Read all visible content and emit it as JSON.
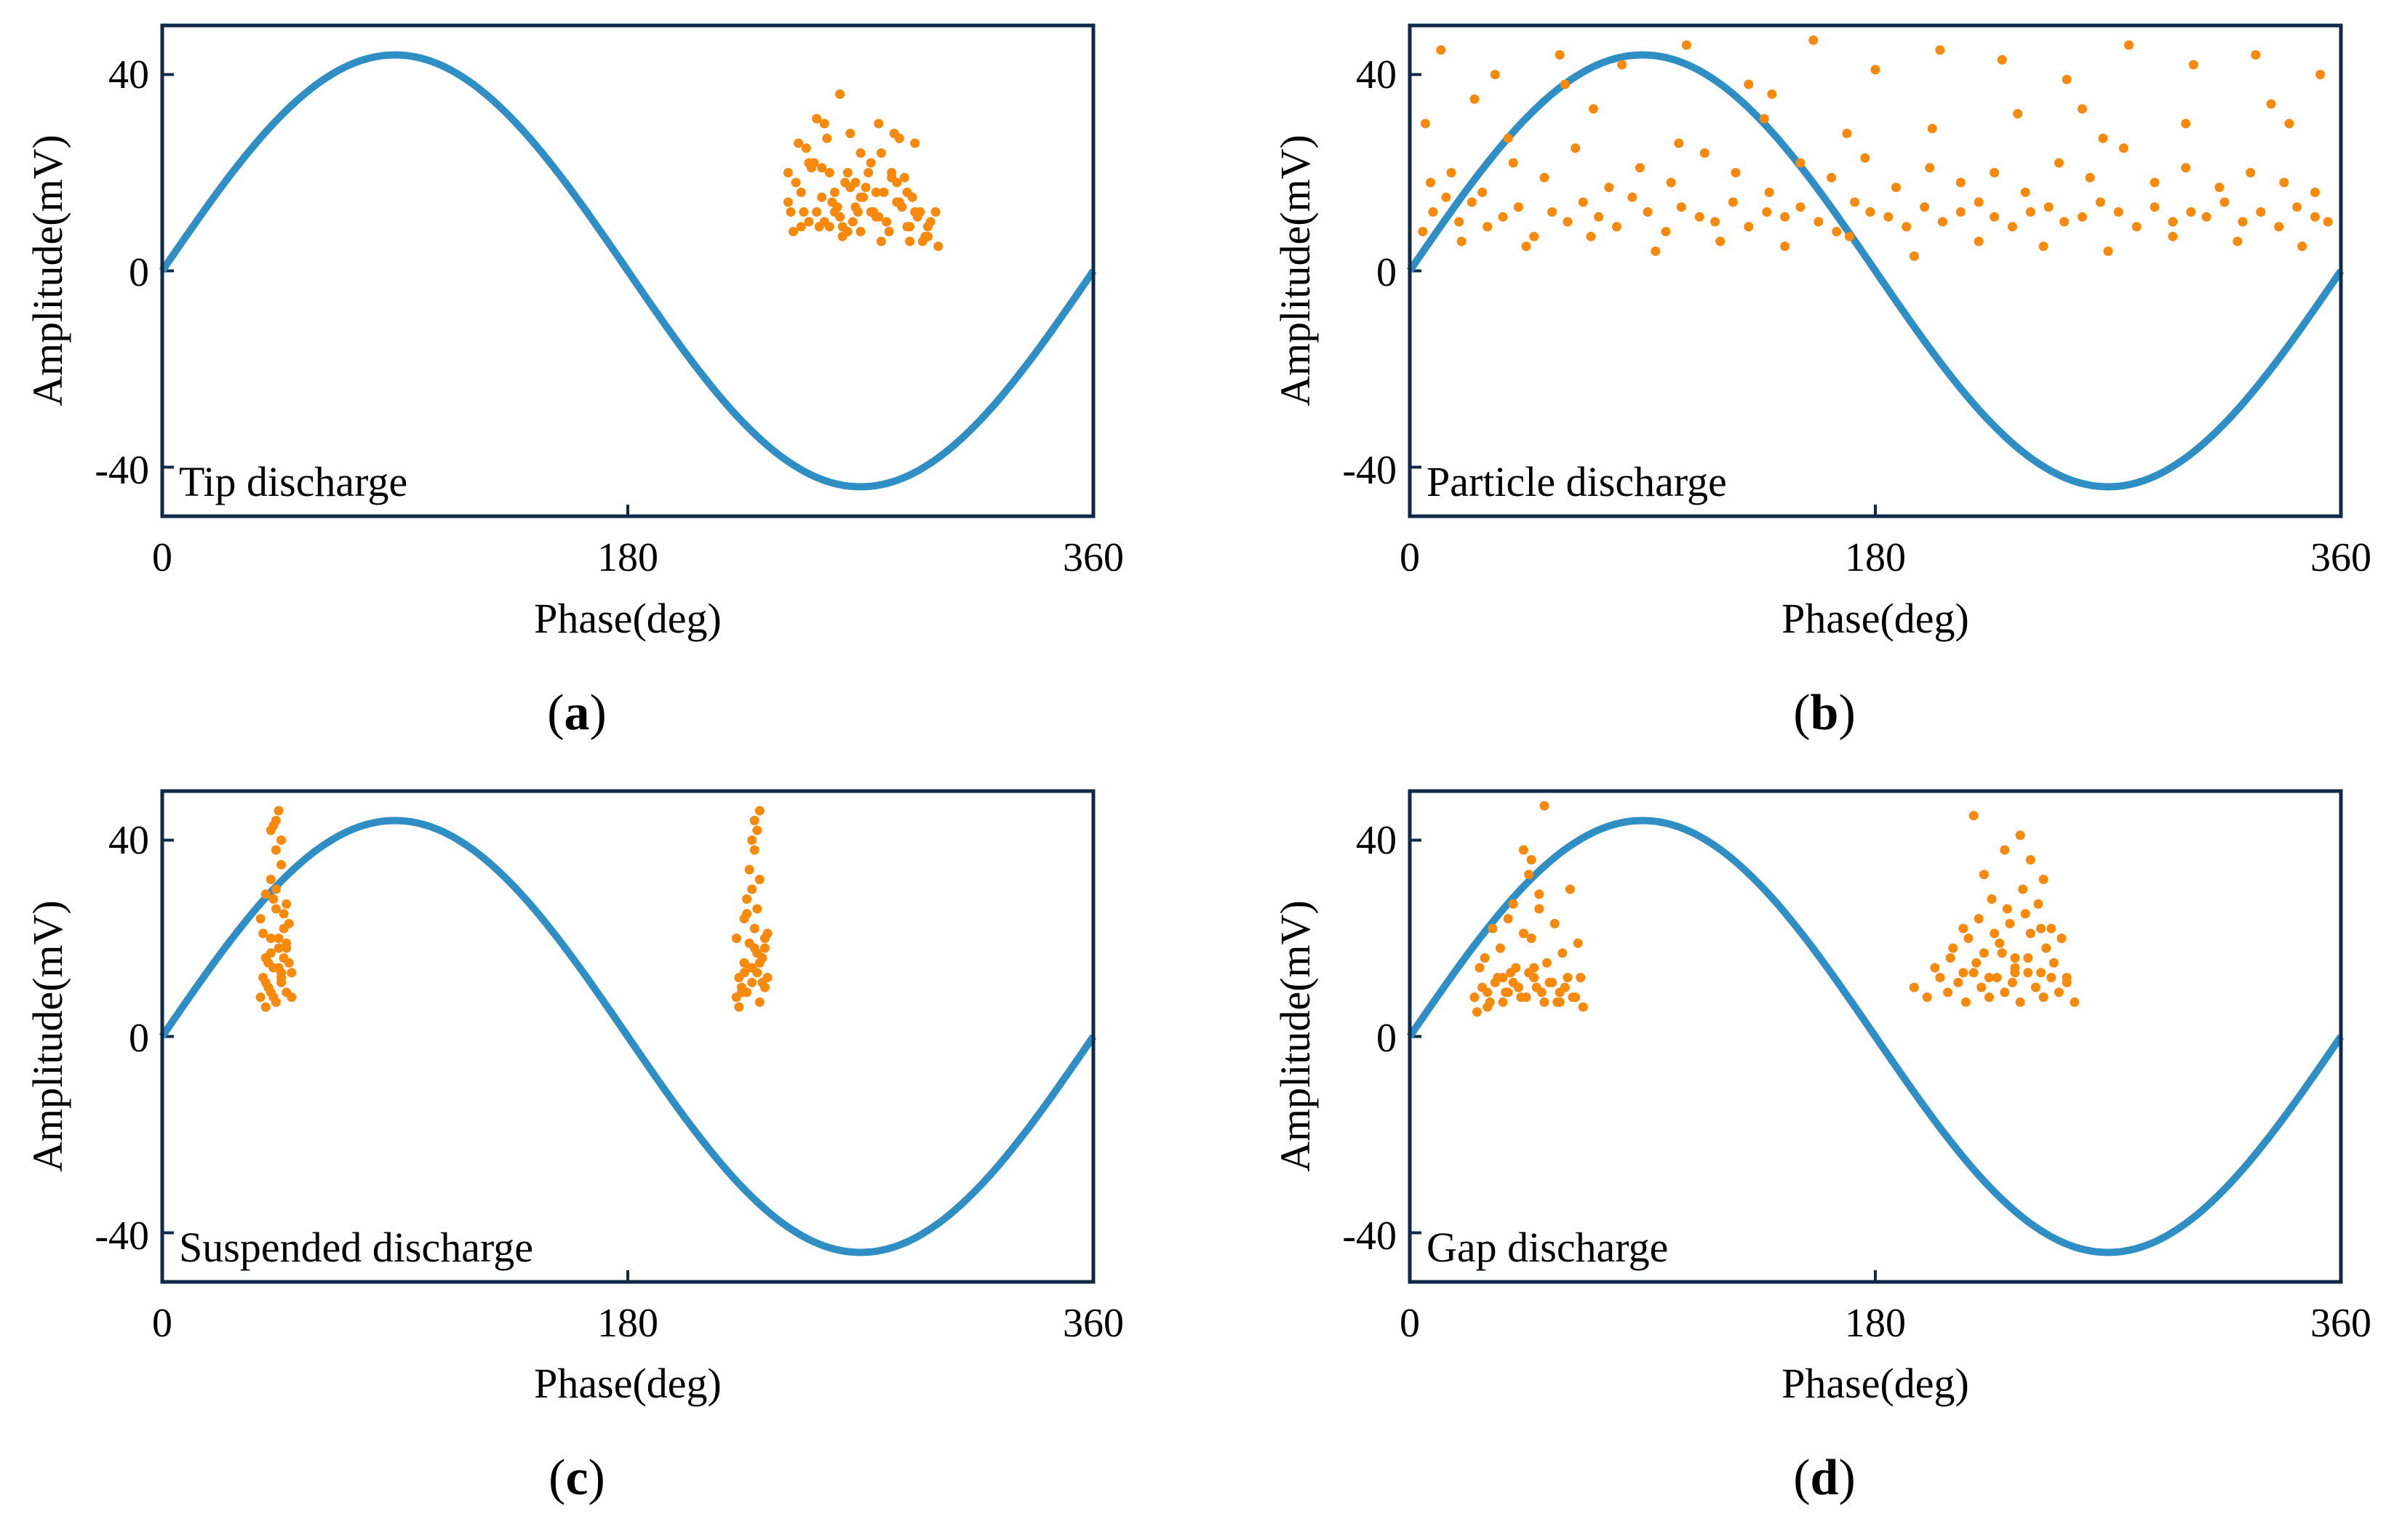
{
  "figure": {
    "colors": {
      "sine": "#2f8fc4",
      "points": "#f7890c",
      "frame": "#0f2a48",
      "text": "#000000"
    }
  },
  "chart_data": [
    {
      "type": "scatter",
      "caption_letter": "a",
      "annotation": "Tip discharge",
      "xlabel": "Phase(deg)",
      "ylabel": "Amplitude(mV)",
      "xlim": [
        0,
        360
      ],
      "ylim": [
        -50,
        50
      ],
      "xticks": [
        0,
        180,
        360
      ],
      "yticks": [
        -40,
        0,
        40
      ],
      "xtick_labels": [
        "0",
        "180",
        "360"
      ],
      "ytick_labels": [
        "-40",
        "0",
        "40"
      ],
      "series": [
        {
          "name": "Reference sine",
          "kind": "line",
          "amplitude": 44
        },
        {
          "name": "PD pulses",
          "kind": "scatter",
          "x": [
            242,
            245,
            248,
            250,
            252,
            255,
            258,
            260,
            262,
            265,
            268,
            270,
            272,
            275,
            278,
            280,
            282,
            285,
            288,
            290,
            292,
            295,
            243,
            247,
            251,
            254,
            257,
            261,
            264,
            267,
            271,
            274,
            277,
            281,
            284,
            287,
            291,
            294,
            297,
            244,
            249,
            253,
            256,
            259,
            263,
            266,
            269,
            273,
            276,
            279,
            283,
            286,
            289,
            293,
            296,
            246,
            258,
            262,
            270,
            277,
            284,
            291,
            253,
            266,
            250,
            282,
            288,
            256,
            268,
            274,
            242,
            247,
            260,
            263,
            276,
            289,
            296,
            299,
            300,
            255,
            270,
            278,
            285,
            265
          ],
          "y": [
            14,
            18,
            12,
            10,
            22,
            15,
            9,
            16,
            11,
            20,
            13,
            8,
            17,
            12,
            24,
            10,
            19,
            14,
            9,
            15,
            11,
            7,
            12,
            16,
            21,
            9,
            27,
            13,
            18,
            10,
            15,
            22,
            11,
            8,
            14,
            19,
            12,
            6,
            10,
            8,
            25,
            12,
            30,
            14,
            9,
            17,
            12,
            20,
            11,
            16,
            28,
            13,
            9,
            12,
            7,
            26,
            20,
            36,
            24,
            30,
            18,
            26,
            31,
            28,
            22,
            20,
            16,
            10,
            18,
            12,
            20,
            9,
            12,
            7,
            16,
            6,
            9,
            12,
            5,
            21,
            15,
            6,
            27,
            8
          ]
        }
      ]
    },
    {
      "type": "scatter",
      "caption_letter": "b",
      "annotation": "Particle discharge",
      "xlabel": "Phase(deg)",
      "ylabel": "Amplitude(mV)",
      "xlim": [
        0,
        360
      ],
      "ylim": [
        -50,
        50
      ],
      "xticks": [
        0,
        180,
        360
      ],
      "yticks": [
        -40,
        0,
        40
      ],
      "xtick_labels": [
        "0",
        "180",
        "360"
      ],
      "ytick_labels": [
        "-40",
        "0",
        "40"
      ],
      "series": [
        {
          "name": "Reference sine",
          "kind": "line",
          "amplitude": 44
        },
        {
          "name": "PD pulses",
          "kind": "scatter",
          "x": [
            5,
            9,
            14,
            19,
            24,
            30,
            36,
            42,
            48,
            55,
            61,
            67,
            73,
            80,
            86,
            92,
            99,
            105,
            112,
            118,
            125,
            131,
            138,
            145,
            151,
            158,
            165,
            172,
            178,
            185,
            192,
            199,
            206,
            213,
            220,
            226,
            233,
            240,
            247,
            253,
            260,
            267,
            274,
            281,
            288,
            295,
            302,
            308,
            315,
            322,
            329,
            336,
            343,
            350,
            355,
            8,
            16,
            28,
            40,
            52,
            64,
            77,
            89,
            101,
            114,
            126,
            139,
            151,
            163,
            176,
            188,
            201,
            213,
            226,
            238,
            251,
            263,
            276,
            288,
            300,
            313,
            325,
            338,
            350,
            12,
            33,
            58,
            82,
            107,
            131,
            156,
            180,
            205,
            229,
            254,
            278,
            303,
            327,
            352,
            20,
            45,
            70,
            95,
            120,
            145,
            170,
            195,
            220,
            245,
            270,
            295,
            320,
            345,
            6,
            38,
            71,
            104,
            137,
            169,
            202,
            235,
            268,
            300,
            333,
            25,
            60,
            140,
            260,
            340
          ],
          "y": [
            8,
            12,
            15,
            10,
            14,
            9,
            11,
            13,
            7,
            12,
            10,
            14,
            11,
            9,
            15,
            12,
            8,
            13,
            11,
            10,
            14,
            9,
            12,
            11,
            13,
            10,
            8,
            14,
            12,
            11,
            9,
            13,
            10,
            12,
            14,
            11,
            9,
            12,
            13,
            10,
            11,
            14,
            12,
            9,
            13,
            10,
            12,
            11,
            14,
            10,
            12,
            9,
            13,
            11,
            10,
            18,
            20,
            16,
            22,
            19,
            25,
            17,
            21,
            18,
            24,
            20,
            16,
            22,
            19,
            23,
            17,
            21,
            18,
            20,
            16,
            22,
            19,
            25,
            18,
            21,
            17,
            20,
            18,
            16,
            45,
            40,
            44,
            42,
            46,
            38,
            47,
            41,
            45,
            43,
            39,
            46,
            42,
            44,
            40,
            6,
            5,
            7,
            4,
            6,
            5,
            7,
            3,
            6,
            5,
            4,
            7,
            6,
            5,
            30,
            27,
            33,
            26,
            31,
            28,
            29,
            32,
            27,
            30,
            34,
            35,
            38,
            36,
            33,
            30
          ]
        }
      ]
    },
    {
      "type": "scatter",
      "caption_letter": "c",
      "annotation": "Suspended discharge",
      "xlabel": "Phase(deg)",
      "ylabel": "Amplitude(mV)",
      "xlim": [
        0,
        360
      ],
      "ylim": [
        -50,
        50
      ],
      "xticks": [
        0,
        180,
        360
      ],
      "yticks": [
        -40,
        0,
        40
      ],
      "xtick_labels": [
        "0",
        "180",
        "360"
      ],
      "ytick_labels": [
        "-40",
        "0",
        "40"
      ],
      "series": [
        {
          "name": "Reference sine",
          "kind": "line",
          "amplitude": 44
        },
        {
          "name": "PD pulses",
          "kind": "scatter",
          "x": [
            38,
            39,
            40,
            41,
            42,
            43,
            44,
            45,
            46,
            47,
            48,
            49,
            50,
            38,
            40,
            42,
            44,
            46,
            48,
            50,
            39,
            41,
            43,
            45,
            47,
            49,
            40,
            42,
            44,
            46,
            48,
            41,
            43,
            45,
            47,
            42,
            44,
            46,
            43,
            45,
            44,
            46,
            42,
            48,
            40,
            222,
            223,
            224,
            225,
            226,
            227,
            228,
            229,
            230,
            231,
            232,
            233,
            234,
            222,
            224,
            226,
            228,
            230,
            232,
            234,
            223,
            225,
            227,
            229,
            231,
            233,
            226,
            228,
            230,
            227,
            229,
            231,
            228,
            230,
            229,
            231,
            225,
            233
          ],
          "y": [
            8,
            12,
            16,
            10,
            20,
            14,
            7,
            18,
            11,
            22,
            9,
            15,
            13,
            24,
            6,
            17,
            26,
            12,
            19,
            8,
            21,
            10,
            28,
            14,
            16,
            23,
            11,
            9,
            30,
            13,
            18,
            15,
            8,
            20,
            25,
            42,
            44,
            40,
            43,
            46,
            38,
            35,
            32,
            27,
            29,
            8,
            12,
            10,
            15,
            9,
            14,
            11,
            18,
            13,
            7,
            16,
            10,
            12,
            20,
            9,
            25,
            14,
            17,
            11,
            21,
            6,
            13,
            19,
            22,
            15,
            18,
            28,
            30,
            26,
            34,
            38,
            32,
            40,
            42,
            44,
            46,
            24,
            20
          ]
        }
      ]
    },
    {
      "type": "scatter",
      "caption_letter": "d",
      "annotation": "Gap discharge",
      "xlabel": "Phase(deg)",
      "ylabel": "Amplitude(mV)",
      "xlim": [
        0,
        360
      ],
      "ylim": [
        -50,
        50
      ],
      "xticks": [
        0,
        180,
        360
      ],
      "yticks": [
        -40,
        0,
        40
      ],
      "xtick_labels": [
        "0",
        "180",
        "360"
      ],
      "ytick_labels": [
        "-40",
        "0",
        "40"
      ],
      "series": [
        {
          "name": "Reference sine",
          "kind": "line",
          "amplitude": 44
        },
        {
          "name": "PD pulses",
          "kind": "scatter",
          "x": [
            25,
            28,
            31,
            34,
            37,
            40,
            43,
            46,
            49,
            52,
            55,
            58,
            61,
            64,
            67,
            27,
            30,
            33,
            36,
            39,
            42,
            45,
            48,
            51,
            54,
            57,
            60,
            63,
            66,
            29,
            35,
            41,
            47,
            53,
            59,
            65,
            32,
            38,
            44,
            50,
            56,
            62,
            36,
            42,
            48,
            54,
            40,
            46,
            50,
            44,
            47,
            52,
            30,
            26,
            38,
            58,
            195,
            200,
            205,
            208,
            212,
            215,
            218,
            221,
            224,
            227,
            230,
            233,
            236,
            239,
            242,
            245,
            248,
            251,
            254,
            257,
            203,
            209,
            214,
            219,
            224,
            229,
            234,
            239,
            244,
            249,
            254,
            210,
            216,
            222,
            228,
            234,
            240,
            246,
            252,
            214,
            220,
            226,
            232,
            238,
            244,
            225,
            231,
            237,
            243,
            222,
            240,
            230,
            218,
            245,
            236,
            248,
            234
          ],
          "y": [
            8,
            10,
            7,
            12,
            9,
            11,
            8,
            13,
            10,
            7,
            11,
            9,
            12,
            8,
            6,
            14,
            9,
            11,
            7,
            13,
            10,
            8,
            12,
            9,
            11,
            7,
            10,
            8,
            12,
            16,
            18,
            14,
            20,
            15,
            17,
            19,
            22,
            24,
            21,
            26,
            23,
            30,
            12,
            10,
            14,
            11,
            27,
            33,
            29,
            38,
            36,
            47,
            6,
            5,
            9,
            7,
            10,
            8,
            12,
            9,
            11,
            7,
            13,
            10,
            8,
            12,
            9,
            11,
            7,
            13,
            10,
            8,
            12,
            9,
            11,
            7,
            14,
            16,
            13,
            15,
            12,
            17,
            14,
            16,
            13,
            15,
            12,
            18,
            20,
            17,
            19,
            16,
            21,
            18,
            20,
            22,
            24,
            21,
            23,
            25,
            22,
            28,
            26,
            30,
            27,
            33,
            36,
            38,
            45,
            32,
            41,
            22,
            13
          ]
        }
      ]
    }
  ]
}
